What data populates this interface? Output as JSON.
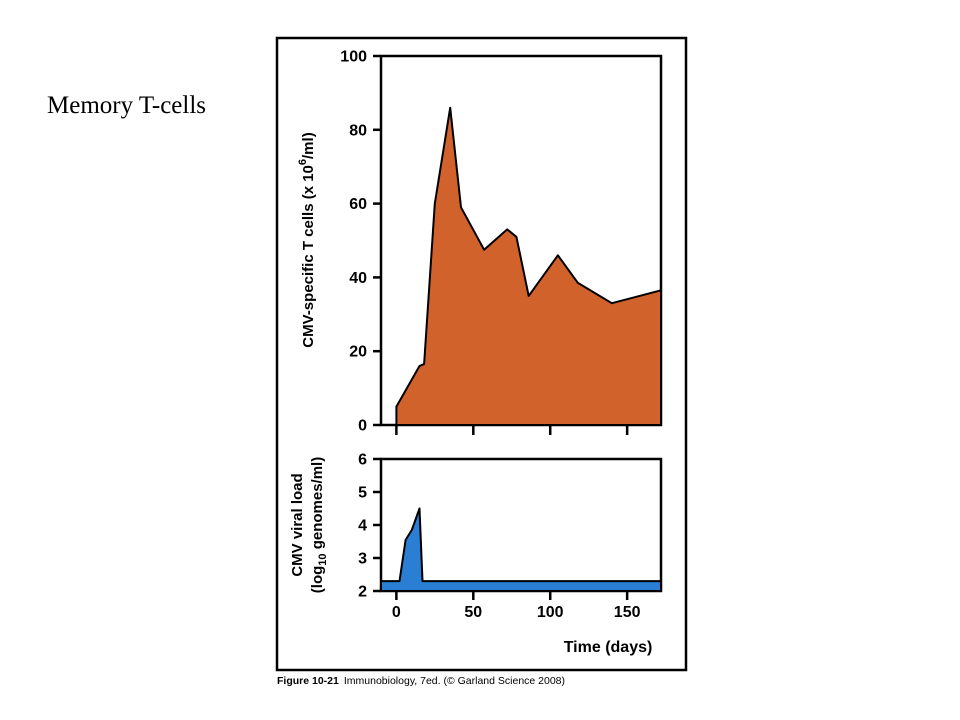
{
  "slide": {
    "title": "Memory T-cells"
  },
  "caption": {
    "figure": "Figure 10-21",
    "source": "Immunobiology, 7ed. (© Garland Science 2008)"
  },
  "colors": {
    "tcells_fill": "#d2622b",
    "viral_fill": "#2a7fd4",
    "outline": "#000000",
    "frame": "#000000"
  },
  "chart_data": [
    {
      "type": "area",
      "title": "",
      "xlabel": "",
      "ylabel_main": "CMV-specific T cells (x 10",
      "ylabel_sup": "6",
      "ylabel_end": "/ml)",
      "xlim": [
        -10,
        172
      ],
      "ylim": [
        0,
        100
      ],
      "yticks": [
        0,
        20,
        40,
        60,
        80,
        100
      ],
      "xticks": [
        0,
        50,
        100,
        150
      ],
      "grid": false,
      "series": [
        {
          "x": [
            0,
            15,
            18,
            25,
            35,
            42,
            57,
            72,
            78,
            86,
            105,
            118,
            140,
            172
          ],
          "y": [
            5,
            16,
            16.5,
            60,
            86,
            59,
            47.5,
            53,
            51,
            35,
            46,
            38.5,
            33,
            36.5
          ]
        }
      ]
    },
    {
      "type": "area",
      "title": "",
      "ylabel_line1": "CMV viral load",
      "ylabel_line2_a": "(log",
      "ylabel_line2_sub": "10",
      "ylabel_line2_b": " genomes/ml)",
      "xlabel": "Time (days)",
      "xlim": [
        -10,
        172
      ],
      "ylim": [
        2,
        6
      ],
      "yticks": [
        2,
        3,
        4,
        5,
        6
      ],
      "xticks": [
        0,
        50,
        100,
        150
      ],
      "grid": false,
      "series": [
        {
          "x": [
            -10,
            0,
            2,
            6,
            10,
            15,
            17,
            172
          ],
          "y": [
            2.3,
            2.3,
            2.3,
            3.55,
            3.85,
            4.5,
            2.3,
            2.3
          ]
        }
      ]
    }
  ]
}
